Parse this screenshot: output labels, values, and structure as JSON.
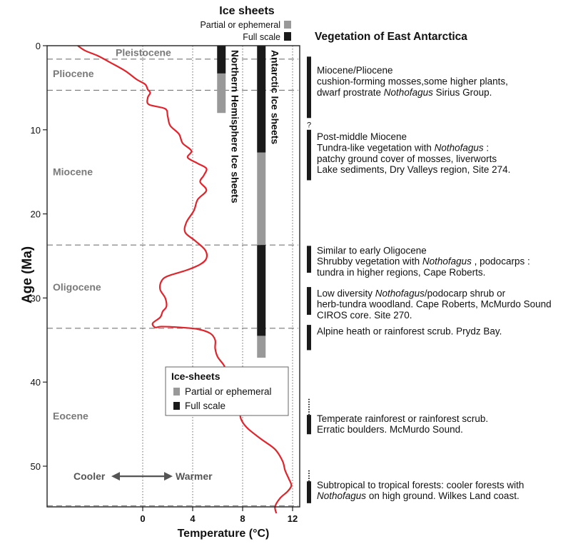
{
  "chart_data": {
    "type": "line",
    "xlabel": "Temperature (°C)",
    "ylabel": "Age (Ma)",
    "xlim": [
      -9.5,
      12.5
    ],
    "ylim": [
      0,
      55.5
    ],
    "xticks": [
      0,
      4,
      8,
      12
    ],
    "yticks": [
      0,
      10,
      20,
      30,
      40,
      50
    ],
    "grid": "vertical dotted at 0, 4, 8, 12",
    "series": [
      {
        "color": "#e0242c",
        "points": [
          [
            -5.2,
            0.0
          ],
          [
            -4.6,
            0.6
          ],
          [
            -3.6,
            1.2
          ],
          [
            -2.6,
            2.0
          ],
          [
            -1.4,
            3.0
          ],
          [
            -0.5,
            4.0
          ],
          [
            0.2,
            4.6
          ],
          [
            0.4,
            5.2
          ],
          [
            0.6,
            5.6
          ],
          [
            0.4,
            6.2
          ],
          [
            0.5,
            7.0
          ],
          [
            1.8,
            7.5
          ],
          [
            2.0,
            8.4
          ],
          [
            2.2,
            9.5
          ],
          [
            2.9,
            10.5
          ],
          [
            3.2,
            11.6
          ],
          [
            3.9,
            12.5
          ],
          [
            3.6,
            13.3
          ],
          [
            4.4,
            14.0
          ],
          [
            5.1,
            14.6
          ],
          [
            4.9,
            15.4
          ],
          [
            4.6,
            16.2
          ],
          [
            5.1,
            17.2
          ],
          [
            4.4,
            18.3
          ],
          [
            4.1,
            19.6
          ],
          [
            3.5,
            21.0
          ],
          [
            3.4,
            22.2
          ],
          [
            4.2,
            23.2
          ],
          [
            5.0,
            24.3
          ],
          [
            5.1,
            25.3
          ],
          [
            4.6,
            26.0
          ],
          [
            3.5,
            26.7
          ],
          [
            2.0,
            27.4
          ],
          [
            1.5,
            28.0
          ],
          [
            1.4,
            29.0
          ],
          [
            1.8,
            30.0
          ],
          [
            1.9,
            31.0
          ],
          [
            1.6,
            31.6
          ],
          [
            1.4,
            32.3
          ],
          [
            0.8,
            33.0
          ],
          [
            1.0,
            33.5
          ],
          [
            1.5,
            33.4
          ],
          [
            3.0,
            33.5
          ],
          [
            4.4,
            33.7
          ],
          [
            5.4,
            34.2
          ],
          [
            5.8,
            35.0
          ],
          [
            5.8,
            36.0
          ],
          [
            6.0,
            37.0
          ],
          [
            6.5,
            38.0
          ],
          [
            6.8,
            39.0
          ],
          [
            7.2,
            40.0
          ],
          [
            7.8,
            41.2
          ],
          [
            8.0,
            42.5
          ],
          [
            7.8,
            43.5
          ],
          [
            7.9,
            44.5
          ],
          [
            8.4,
            45.5
          ],
          [
            9.5,
            46.8
          ],
          [
            10.6,
            48.0
          ],
          [
            11.2,
            49.4
          ],
          [
            11.4,
            50.5
          ],
          [
            11.7,
            51.5
          ],
          [
            11.9,
            52.3
          ],
          [
            11.6,
            53.0
          ],
          [
            11.0,
            53.8
          ],
          [
            10.6,
            54.8
          ],
          [
            10.7,
            55.6
          ]
        ]
      }
    ],
    "epoch_boundaries": [
      1.6,
      5.3,
      23.7,
      33.6,
      54.7
    ],
    "epochs": [
      {
        "label": "Pleistocene",
        "age": 0.8
      },
      {
        "label": "Pliocene",
        "age": 3.3
      },
      {
        "label": "Miocene",
        "age": 15.0
      },
      {
        "label": "Oligocene",
        "age": 28.7
      },
      {
        "label": "Eocene",
        "age": 44.0
      }
    ],
    "annotations": {
      "cooler": "Cooler",
      "warmer": "Warmer",
      "arrow_age": 51.2,
      "cooler_x": -7.0,
      "warmer_x": 4.3
    },
    "ice_sheets": {
      "header": "Ice sheets",
      "partial_label": "Partial or ephemeral",
      "full_label": "Full scale",
      "partial_color": "#999999",
      "full_color": "#1a1a1a",
      "northern": {
        "label": "Northern Hemisphere Ice sheets",
        "temp_position": 6.3,
        "full": [
          0.0,
          3.3
        ],
        "partial": [
          3.3,
          8.0
        ]
      },
      "antarctic": {
        "label": "Antarctic Ice sheets",
        "temp_position": 9.5,
        "full_segments": [
          [
            0.0,
            12.7
          ],
          [
            23.7,
            34.5
          ]
        ],
        "partial_segments": [
          [
            12.7,
            23.7
          ],
          [
            34.5,
            37.1
          ]
        ]
      }
    },
    "legend": {
      "title": "Ice-sheets",
      "items": [
        "Partial or ephemeral",
        "Full scale"
      ],
      "placement": "lower-middle"
    }
  },
  "vegetation": {
    "title": "Vegetation of East Antarctica",
    "bars": [
      {
        "from": 1.3,
        "to": 8.6,
        "dotted_from": null
      },
      {
        "from": 10.0,
        "to": 16.0,
        "dotted_from": null
      },
      {
        "from": 23.8,
        "to": 27.0,
        "dotted_from": null
      },
      {
        "from": 28.7,
        "to": 32.0,
        "dotted_from": null
      },
      {
        "from": 33.2,
        "to": 36.2,
        "dotted_from": null
      },
      {
        "from": 43.9,
        "to": 46.2,
        "dotted_from": 42.0
      },
      {
        "from": 51.8,
        "to": 54.4,
        "dotted_from": 50.5
      }
    ],
    "question_mark": "?",
    "question_age": 9.3,
    "entries": [
      {
        "age": 2.9,
        "lines": [
          [
            {
              "t": "Miocene/Pliocene"
            }
          ],
          [
            {
              "t": "cushion-forming mosses,some higher plants,"
            }
          ],
          [
            {
              "t": "dwarf prostrate "
            },
            {
              "t": "Nothofagus",
              "i": true
            },
            {
              "t": " Sirius Group."
            }
          ]
        ]
      },
      {
        "age": 10.8,
        "lines": [
          [
            {
              "t": "Post-middle Miocene"
            }
          ],
          [
            {
              "t": "Tundra-like vegetation with "
            },
            {
              "t": "Nothofagus",
              "i": true
            },
            {
              "t": " :"
            }
          ],
          [
            {
              "t": "patchy ground cover of mosses, liverworts"
            }
          ],
          [
            {
              "t": "Lake sediments, Dry Valleys region, Site 274."
            }
          ]
        ]
      },
      {
        "age": 24.3,
        "lines": [
          [
            {
              "t": "Similar to early Oligocene"
            }
          ],
          [
            {
              "t": "Shrubby vegetation with "
            },
            {
              "t": "Nothofagus",
              "i": true
            },
            {
              "t": " , podocarps :"
            }
          ],
          [
            {
              "t": "tundra in higher regions, Cape Roberts."
            }
          ]
        ]
      },
      {
        "age": 29.4,
        "lines": [
          [
            {
              "t": "Low diversity "
            },
            {
              "t": "Nothofagus",
              "i": true
            },
            {
              "t": "/podocarp shrub or"
            }
          ],
          [
            {
              "t": "herb-tundra woodland. Cape Roberts, McMurdo Sound"
            }
          ],
          [
            {
              "t": "CIROS core. Site 270."
            }
          ]
        ]
      },
      {
        "age": 33.9,
        "lines": [
          [
            {
              "t": "Alpine heath or rainforest scrub. Prydz Bay."
            }
          ]
        ]
      },
      {
        "age": 44.3,
        "lines": [
          [
            {
              "t": "Temperate rainforest or rainforest scrub."
            }
          ],
          [
            {
              "t": "Erratic boulders. McMurdo Sound."
            }
          ]
        ]
      },
      {
        "age": 52.2,
        "lines": [
          [
            {
              "t": "Subtropical to tropical forests: cooler forests with"
            }
          ],
          [
            {
              "t": "Nothofagus",
              "i": true
            },
            {
              "t": " on high ground. Wilkes Land coast."
            }
          ]
        ]
      }
    ]
  }
}
